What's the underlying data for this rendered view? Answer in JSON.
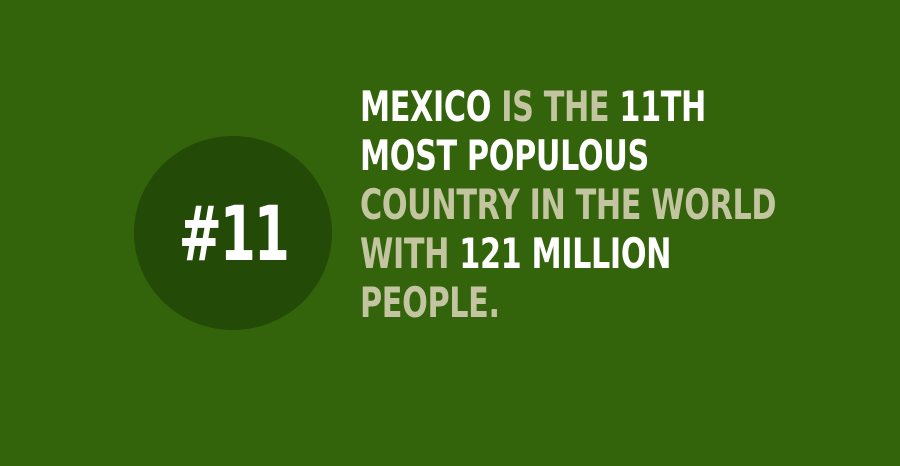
{
  "colors": {
    "background": "#33630a",
    "circle": "#234a06",
    "highlight": "#ffffff",
    "muted": "#c3c5a0"
  },
  "badge": {
    "label": "#11"
  },
  "fact": {
    "lines": [
      [
        {
          "text": "MEXICO",
          "tone": "highlight"
        },
        {
          "text": " IS THE ",
          "tone": "muted"
        },
        {
          "text": "11TH",
          "tone": "highlight"
        }
      ],
      [
        {
          "text": "MOST POPULOUS",
          "tone": "highlight"
        }
      ],
      [
        {
          "text": "COUNTRY IN THE WORLD",
          "tone": "muted"
        }
      ],
      [
        {
          "text": "WITH ",
          "tone": "muted"
        },
        {
          "text": "121 MILLION",
          "tone": "highlight"
        }
      ],
      [
        {
          "text": "PEOPLE.",
          "tone": "muted"
        }
      ]
    ]
  }
}
